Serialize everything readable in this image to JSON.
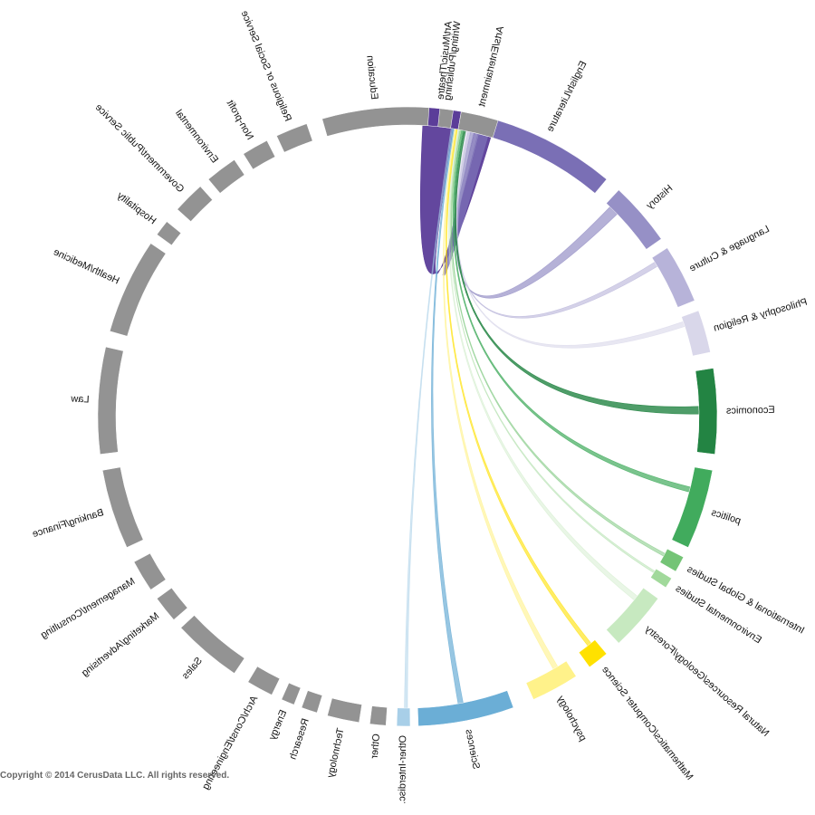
{
  "chart_data": {
    "type": "chord",
    "title": "",
    "mirrored": true,
    "majors": [
      {
        "label": "Art/Music/Theatre",
        "color": "#5b3d99"
      },
      {
        "label": "English/Literature",
        "color": "#7a6fb5"
      },
      {
        "label": "History",
        "color": "#9690c6"
      },
      {
        "label": "Language & Culture",
        "color": "#b7b3d9"
      },
      {
        "label": "Philosophy & Religion",
        "color": "#d9d7ea"
      },
      {
        "label": "Economics",
        "color": "#238443"
      },
      {
        "label": "politics",
        "color": "#41ab5d"
      },
      {
        "label": "International & Global Studies",
        "color": "#74c476"
      },
      {
        "label": "Environmental Studies",
        "color": "#a1d99b"
      },
      {
        "label": "Natural Resources/Geology/Forestry",
        "color": "#c7e9c0"
      },
      {
        "label": "Mathematics/Computer Science",
        "color": "#ffe100"
      },
      {
        "label": "psychology",
        "color": "#fff28a"
      },
      {
        "label": "Sciences",
        "color": "#6baed6"
      },
      {
        "label": "Other-Interdisc.",
        "color": "#a8cfe8"
      }
    ],
    "careers": [
      "Other",
      "Technology",
      "Research",
      "Energy",
      "Arch/Const/Engineering",
      "Sales",
      "Marketing/Advertising",
      "Management/Consulting",
      "Banking/Finance",
      "Law",
      "Health/Medicine",
      "Hospitality",
      "Government/Public Service",
      "Environmental",
      "Non-profit",
      "Religious or Social Service",
      "Education",
      "Writing/Publishing",
      "Arts/Entertainment"
    ],
    "career_color": "#939393",
    "copyright": "Copyright © 2014 CerusData LLC.  All rights reserved."
  }
}
